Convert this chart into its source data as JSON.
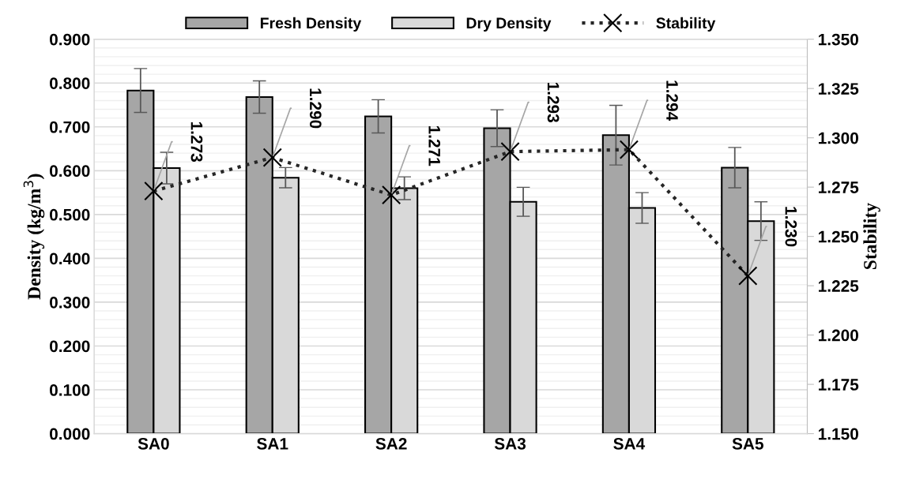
{
  "chart_data": {
    "type": "bar",
    "categories": [
      "SA0",
      "SA1",
      "SA2",
      "SA3",
      "SA4",
      "SA5"
    ],
    "ylabel": "Density (kg/m$^{3}$)",
    "y2label": "Stability",
    "ylim": [
      0,
      0.9
    ],
    "yticks": [
      {
        "value": 0,
        "label": "0.000"
      },
      {
        "value": 0.1,
        "label": "0.100"
      },
      {
        "value": 0.2,
        "label": "0.200"
      },
      {
        "value": 0.3,
        "label": "0.300"
      },
      {
        "value": 0.4,
        "label": "0.400"
      },
      {
        "value": 0.5,
        "label": "0.500"
      },
      {
        "value": 0.6,
        "label": "0.600"
      },
      {
        "value": 0.7,
        "label": "0.700"
      },
      {
        "value": 0.8,
        "label": "0.800"
      },
      {
        "value": 0.9,
        "label": "0.900"
      }
    ],
    "y2lim": [
      1.15,
      1.35
    ],
    "y2ticks": [
      {
        "value": 1.15,
        "label": "1.150"
      },
      {
        "value": 1.175,
        "label": "1.175"
      },
      {
        "value": 1.2,
        "label": "1.200"
      },
      {
        "value": 1.225,
        "label": "1.225"
      },
      {
        "value": 1.25,
        "label": "1.250"
      },
      {
        "value": 1.275,
        "label": "1.275"
      },
      {
        "value": 1.3,
        "label": "1.300"
      },
      {
        "value": 1.325,
        "label": "1.325"
      },
      {
        "value": 1.35,
        "label": "1.350"
      }
    ],
    "grid": "y",
    "legend": "top",
    "series": [
      {
        "name": "Fresh Density",
        "color": "#a6a6a6",
        "values": [
          0.783,
          0.768,
          0.724,
          0.697,
          0.681,
          0.607
        ],
        "errors": [
          0.05,
          0.037,
          0.038,
          0.042,
          0.068,
          0.046
        ]
      },
      {
        "name": "Dry Density",
        "color": "#d9d9d9",
        "values": [
          0.606,
          0.584,
          0.56,
          0.529,
          0.515,
          0.485
        ],
        "errors": [
          0.036,
          0.023,
          0.026,
          0.033,
          0.035,
          0.044
        ]
      },
      {
        "name": "Stability",
        "type": "line",
        "axis": "y2",
        "color": "#262626",
        "marker": "cross",
        "line_style": "dotted",
        "values": [
          1.273,
          1.29,
          1.271,
          1.293,
          1.294,
          1.23
        ],
        "value_labels": [
          "1.273",
          "1.290",
          "1.271",
          "1.293",
          "1.294",
          "1.230"
        ]
      }
    ]
  }
}
